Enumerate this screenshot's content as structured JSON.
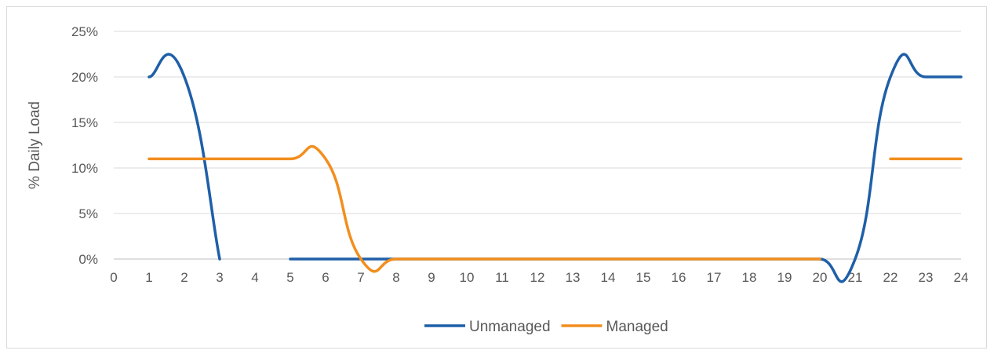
{
  "chart_data": {
    "type": "line",
    "ylabel": "% Daily Load",
    "x": [
      1,
      2,
      3,
      4,
      5,
      6,
      7,
      8,
      9,
      10,
      11,
      12,
      13,
      14,
      15,
      16,
      17,
      18,
      19,
      20,
      21,
      22,
      23,
      24
    ],
    "xlim": [
      0,
      24
    ],
    "x_ticks": [
      "0",
      "1",
      "2",
      "3",
      "4",
      "5",
      "6",
      "7",
      "8",
      "9",
      "10",
      "11",
      "12",
      "13",
      "14",
      "15",
      "16",
      "17",
      "18",
      "19",
      "20",
      "21",
      "22",
      "23",
      "24"
    ],
    "ylim": [
      0,
      25
    ],
    "y_ticks": [
      {
        "value": 0,
        "label": "0%"
      },
      {
        "value": 5,
        "label": "5%"
      },
      {
        "value": 10,
        "label": "10%"
      },
      {
        "value": 15,
        "label": "15%"
      },
      {
        "value": 20,
        "label": "20%"
      },
      {
        "value": 25,
        "label": "25%"
      }
    ],
    "grid": true,
    "legend_position": "bottom",
    "series": [
      {
        "name": "Unmanaged",
        "color": "#1f5fa8",
        "values": [
          20,
          20,
          0,
          null,
          0,
          0,
          0,
          0,
          0,
          0,
          0,
          0,
          0,
          0,
          0,
          0,
          0,
          0,
          0,
          0,
          0,
          20,
          20,
          20
        ]
      },
      {
        "name": "Managed",
        "color": "#f28e1e",
        "values": [
          11,
          11,
          11,
          11,
          11,
          11,
          0,
          0,
          0,
          0,
          0,
          0,
          0,
          0,
          0,
          0,
          0,
          0,
          0,
          0,
          null,
          11,
          11,
          11
        ]
      }
    ]
  }
}
